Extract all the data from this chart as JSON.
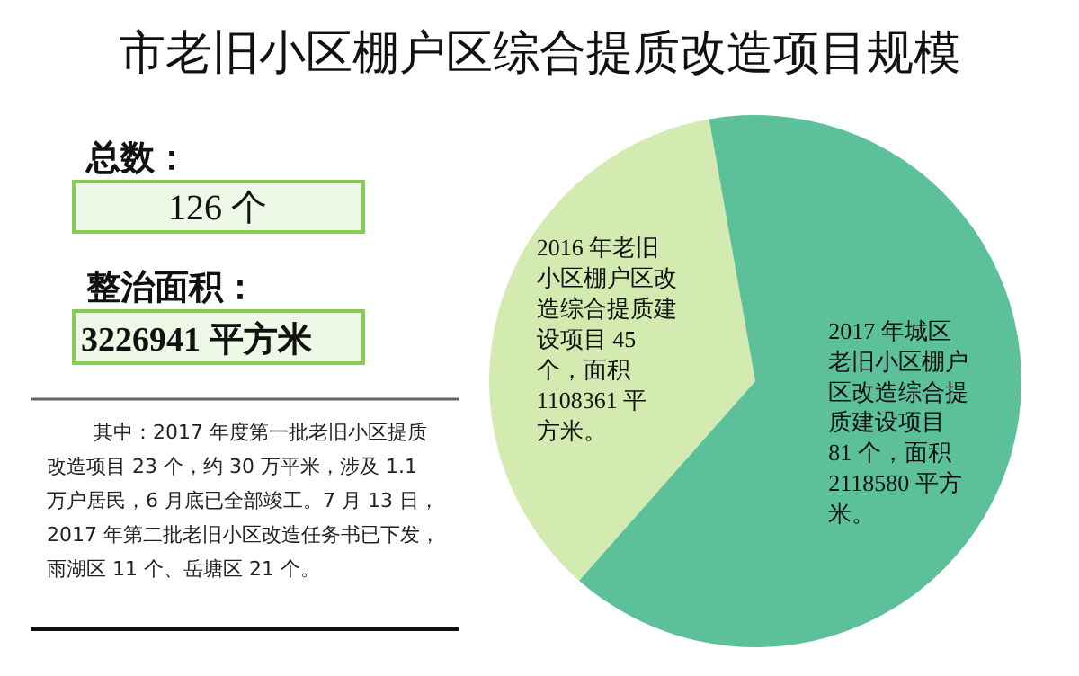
{
  "chart_data": {
    "type": "pie",
    "title": "市老旧小区棚户区综合提质改造项目规模",
    "categories": [
      "2016 年老旧小区棚户区改造综合提质建设项目 45 个，面积 1108361 平方米。",
      "2017 年城区老旧小区棚户区改造综合提质建设项目 81 个，面积 2118580 平方米。"
    ],
    "values": [
      45,
      81
    ],
    "colors": [
      "#d3eab1",
      "#5cc09a"
    ],
    "annotations": [
      "总数：",
      "126 个",
      "整治面积：",
      "3226941 平方米",
      "其中：2017 年度第一批老旧小区提质改造项目 23 个，约 30 万平米，涉及 1.1 万户居民，6 月底已全部竣工。7 月 13 日，2017 年第二批老旧小区改造任务书已下发，雨湖区 11 个、岳塘区 21 个。"
    ]
  }
}
